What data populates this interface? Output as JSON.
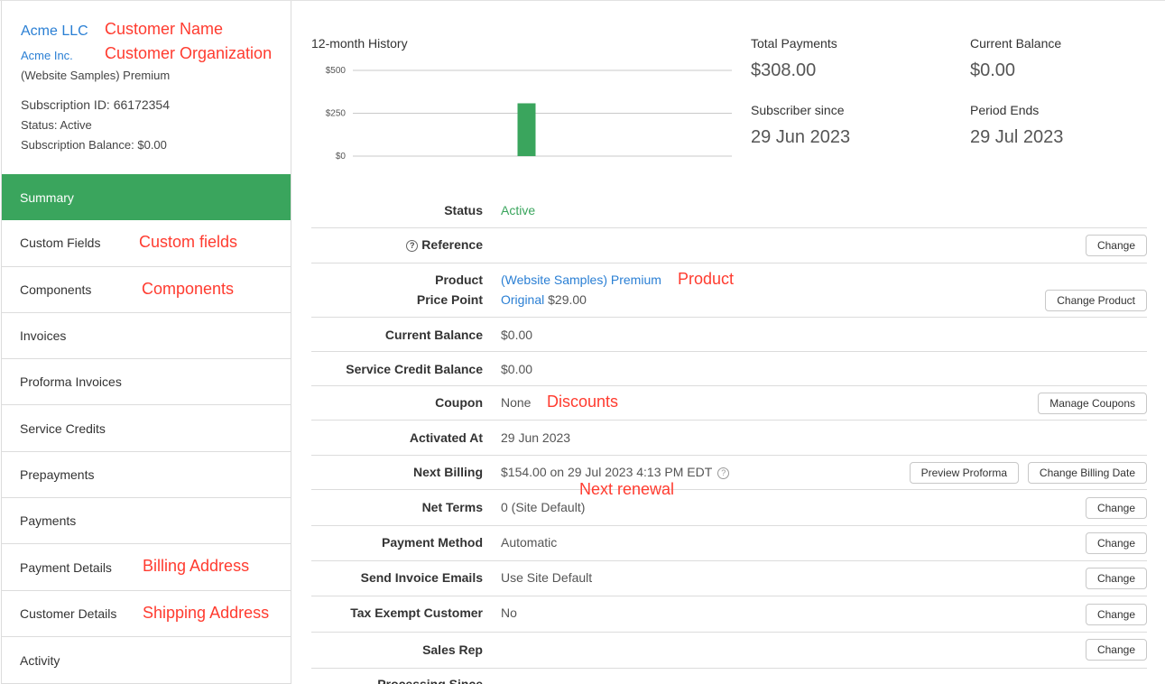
{
  "customer": {
    "name": "Acme LLC",
    "organization": "Acme Inc.",
    "plan": "(Website Samples) Premium",
    "subscription_id": "Subscription ID: 66172354",
    "status": "Status: Active",
    "balance": "Subscription Balance: $0.00"
  },
  "annotations": {
    "customer_name": "Customer Name",
    "customer_org": "Customer Organization",
    "custom_fields": "Custom fields",
    "components": "Components",
    "billing_address": "Billing Address",
    "shipping_address": "Shipping Address",
    "product": "Product",
    "discounts": "Discounts",
    "next_renewal": "Next renewal"
  },
  "nav": [
    "Summary",
    "Custom Fields",
    "Components",
    "Invoices",
    "Proforma Invoices",
    "Service Credits",
    "Prepayments",
    "Payments",
    "Payment Details",
    "Customer Details",
    "Activity"
  ],
  "colors": {
    "accent": "#3aa55d",
    "link": "#2a7fd4",
    "annotation": "#ff3b2f"
  },
  "history": {
    "title": "12-month History"
  },
  "chart_data": {
    "type": "bar",
    "title": "12-month History",
    "y_ticks": [
      "$500",
      "$250",
      "$0"
    ],
    "ylim": [
      0,
      500
    ],
    "values": [
      0,
      0,
      0,
      0,
      0,
      308,
      0,
      0,
      0,
      0,
      0,
      0
    ],
    "grid": true
  },
  "stats": {
    "total_payments_label": "Total Payments",
    "total_payments": "$308.00",
    "current_balance_label": "Current Balance",
    "current_balance": "$0.00",
    "subscriber_since_label": "Subscriber since",
    "subscriber_since": "29 Jun 2023",
    "period_ends_label": "Period Ends",
    "period_ends": "29 Jul 2023"
  },
  "details": {
    "status_label": "Status",
    "status": "Active",
    "reference_label": "Reference",
    "product_label": "Product",
    "product": "(Website Samples) Premium",
    "price_point_label": "Price Point",
    "price_point_name": "Original",
    "price_point_amount": "$29.00",
    "current_balance_label": "Current Balance",
    "current_balance": "$0.00",
    "service_credit_label": "Service Credit Balance",
    "service_credit": "$0.00",
    "coupon_label": "Coupon",
    "coupon": "None",
    "activated_label": "Activated At",
    "activated": "29 Jun 2023",
    "next_billing_label": "Next Billing",
    "next_billing": "$154.00 on 29 Jul 2023 4:13 PM EDT",
    "net_terms_label": "Net Terms",
    "net_terms": "0 (Site Default)",
    "payment_method_label": "Payment Method",
    "payment_method": "Automatic",
    "send_invoice_label": "Send Invoice Emails",
    "send_invoice": "Use Site Default",
    "tax_exempt_label": "Tax Exempt Customer",
    "tax_exempt": "No",
    "sales_rep_label": "Sales Rep",
    "processing_since_label": "Processing Since"
  },
  "buttons": {
    "change": "Change",
    "change_product": "Change Product",
    "manage_coupons": "Manage Coupons",
    "preview_proforma": "Preview Proforma",
    "change_billing_date": "Change Billing Date"
  }
}
